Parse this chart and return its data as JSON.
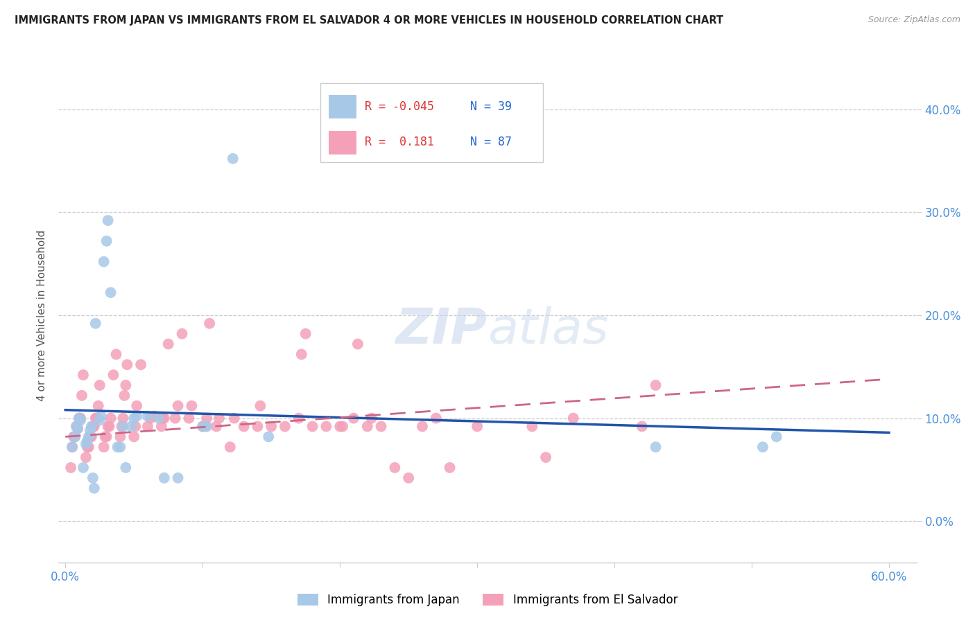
{
  "title": "IMMIGRANTS FROM JAPAN VS IMMIGRANTS FROM EL SALVADOR 4 OR MORE VEHICLES IN HOUSEHOLD CORRELATION CHART",
  "source": "Source: ZipAtlas.com",
  "ylabel": "4 or more Vehicles in Household",
  "y_tick_values": [
    0.0,
    0.1,
    0.2,
    0.3,
    0.4
  ],
  "x_tick_values": [
    0.0,
    0.1,
    0.2,
    0.3,
    0.4,
    0.5,
    0.6
  ],
  "xlim": [
    -0.005,
    0.62
  ],
  "ylim": [
    -0.04,
    0.44
  ],
  "legend_r_japan": "-0.045",
  "legend_n_japan": "39",
  "legend_r_salvador": "0.181",
  "legend_n_salvador": "87",
  "color_japan": "#a8c8e8",
  "color_salvador": "#f4a0b8",
  "color_japan_line": "#2255aa",
  "color_salvador_line": "#cc6688",
  "watermark_zip": "ZIP",
  "watermark_atlas": "atlas",
  "title_color": "#222222",
  "axis_tick_color": "#4a90d9",
  "grid_color": "#cccccc",
  "japan_x": [
    0.005,
    0.007,
    0.008,
    0.009,
    0.01,
    0.011,
    0.013,
    0.015,
    0.016,
    0.017,
    0.018,
    0.019,
    0.02,
    0.021,
    0.022,
    0.025,
    0.026,
    0.028,
    0.03,
    0.031,
    0.033,
    0.038,
    0.04,
    0.042,
    0.044,
    0.048,
    0.05,
    0.052,
    0.06,
    0.068,
    0.072,
    0.082,
    0.1,
    0.103,
    0.122,
    0.148,
    0.43,
    0.508,
    0.518
  ],
  "japan_y": [
    0.072,
    0.082,
    0.092,
    0.09,
    0.1,
    0.098,
    0.052,
    0.075,
    0.078,
    0.082,
    0.088,
    0.092,
    0.042,
    0.032,
    0.192,
    0.098,
    0.102,
    0.252,
    0.272,
    0.292,
    0.222,
    0.072,
    0.072,
    0.092,
    0.052,
    0.092,
    0.1,
    0.102,
    0.102,
    0.1,
    0.042,
    0.042,
    0.092,
    0.092,
    0.352,
    0.082,
    0.072,
    0.072,
    0.082
  ],
  "salvador_x": [
    0.004,
    0.005,
    0.006,
    0.007,
    0.008,
    0.009,
    0.01,
    0.011,
    0.012,
    0.013,
    0.015,
    0.016,
    0.017,
    0.018,
    0.019,
    0.02,
    0.021,
    0.022,
    0.023,
    0.024,
    0.025,
    0.028,
    0.029,
    0.03,
    0.031,
    0.032,
    0.033,
    0.035,
    0.037,
    0.04,
    0.041,
    0.042,
    0.043,
    0.044,
    0.045,
    0.05,
    0.051,
    0.052,
    0.055,
    0.06,
    0.062,
    0.065,
    0.07,
    0.071,
    0.072,
    0.075,
    0.08,
    0.082,
    0.085,
    0.09,
    0.092,
    0.1,
    0.102,
    0.103,
    0.105,
    0.11,
    0.112,
    0.12,
    0.123,
    0.13,
    0.14,
    0.142,
    0.15,
    0.16,
    0.17,
    0.172,
    0.175,
    0.18,
    0.19,
    0.2,
    0.202,
    0.21,
    0.213,
    0.22,
    0.223,
    0.23,
    0.24,
    0.25,
    0.26,
    0.27,
    0.28,
    0.3,
    0.34,
    0.35,
    0.37,
    0.42,
    0.43
  ],
  "salvador_y": [
    0.052,
    0.072,
    0.082,
    0.082,
    0.092,
    0.09,
    0.1,
    0.1,
    0.122,
    0.142,
    0.062,
    0.072,
    0.072,
    0.082,
    0.082,
    0.092,
    0.092,
    0.1,
    0.1,
    0.112,
    0.132,
    0.072,
    0.082,
    0.082,
    0.092,
    0.092,
    0.1,
    0.142,
    0.162,
    0.082,
    0.092,
    0.1,
    0.122,
    0.132,
    0.152,
    0.082,
    0.092,
    0.112,
    0.152,
    0.092,
    0.1,
    0.102,
    0.092,
    0.1,
    0.1,
    0.172,
    0.1,
    0.112,
    0.182,
    0.1,
    0.112,
    0.092,
    0.092,
    0.1,
    0.192,
    0.092,
    0.1,
    0.072,
    0.1,
    0.092,
    0.092,
    0.112,
    0.092,
    0.092,
    0.1,
    0.162,
    0.182,
    0.092,
    0.092,
    0.092,
    0.092,
    0.1,
    0.172,
    0.092,
    0.1,
    0.092,
    0.052,
    0.042,
    0.092,
    0.1,
    0.052,
    0.092,
    0.092,
    0.062,
    0.1,
    0.092,
    0.132
  ],
  "japan_trendline_x": [
    0.0,
    0.6
  ],
  "japan_trendline_y": [
    0.108,
    0.086
  ],
  "salvador_trendline_x": [
    0.0,
    0.6
  ],
  "salvador_trendline_y": [
    0.082,
    0.138
  ]
}
